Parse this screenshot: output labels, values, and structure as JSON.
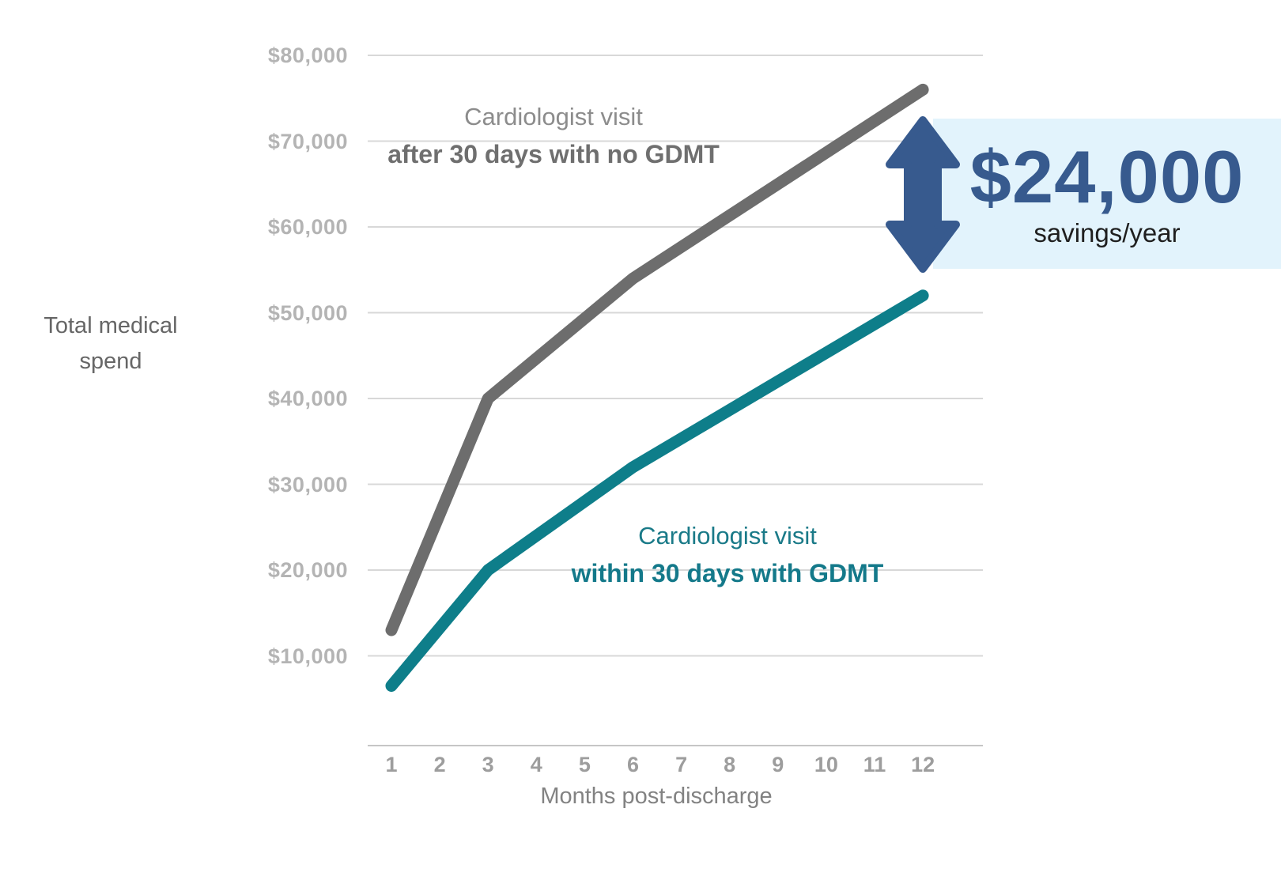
{
  "chart_data": {
    "type": "line",
    "title": "",
    "xlabel": "Months post-discharge",
    "ylabel": "Total medical spend",
    "x_axis": {
      "values": [
        1,
        2,
        3,
        4,
        5,
        6,
        7,
        8,
        9,
        10,
        11,
        12
      ],
      "labels": [
        "1",
        "2",
        "3",
        "4",
        "5",
        "6",
        "7",
        "8",
        "9",
        "10",
        "11",
        "12"
      ]
    },
    "y_axis": {
      "values": [
        80000,
        70000,
        60000,
        50000,
        40000,
        30000,
        20000,
        10000
      ],
      "labels": [
        "$80,000",
        "$70,000",
        "$60,000",
        "$50,000",
        "$40,000",
        "$30,000",
        "$20,000",
        "$10,000"
      ]
    },
    "ylim": [
      0,
      80000
    ],
    "grid": true,
    "grid_color": "#d8d8d8",
    "axis_color": "#c6c6c6",
    "series": [
      {
        "name": "Cardiologist visit after 30 days with no GDMT",
        "label_line1": "Cardiologist visit",
        "label_line2": "after 30 days with no GDMT",
        "color": "#6d6d6d",
        "label_color_line1": "#8c8c8c",
        "label_color_line2": "#6f6f6f",
        "points": [
          {
            "x": 1,
            "y": 13000
          },
          {
            "x": 3,
            "y": 40000
          },
          {
            "x": 6,
            "y": 54000
          },
          {
            "x": 12,
            "y": 76000
          }
        ]
      },
      {
        "name": "Cardiologist visit within 30 days with GDMT",
        "label_line1": "Cardiologist visit",
        "label_line2": "within 30 days with GDMT",
        "color": "#0e7e8a",
        "label_color_line1": "#1a7a88",
        "label_color_line2": "#14798a",
        "points": [
          {
            "x": 1,
            "y": 6500
          },
          {
            "x": 3,
            "y": 20000
          },
          {
            "x": 6,
            "y": 32000
          },
          {
            "x": 12,
            "y": 52000
          }
        ]
      }
    ],
    "annotation": {
      "value": "$24,000",
      "caption": "savings/year",
      "value_color": "#375a8e",
      "caption_color": "#1f1f1f",
      "arrow_color": "#375a8e",
      "box_color": "#e2f3fc"
    }
  }
}
